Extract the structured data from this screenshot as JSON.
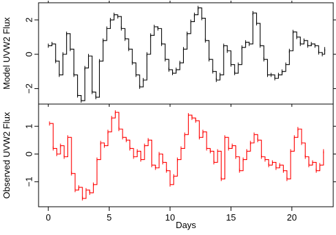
{
  "chart_data": [
    {
      "type": "line",
      "panel": "top",
      "xlabel": "",
      "ylabel": "Model UVW2 Flux",
      "xlim": [
        -0.8,
        23.4
      ],
      "ylim": [
        -2.9,
        3.0
      ],
      "xticks": [
        0,
        5,
        10,
        15,
        20
      ],
      "yticks": [
        -2,
        0,
        2
      ],
      "ytick_labels": [
        "−2",
        "0",
        "2"
      ],
      "color": "#000000",
      "series": [
        {
          "x": [
            0.0,
            0.3,
            0.6,
            0.9,
            1.2,
            1.5,
            1.8,
            2.1,
            2.4,
            2.7,
            3.0,
            3.3,
            3.6,
            3.9,
            4.2,
            4.5,
            4.8,
            5.1,
            5.4,
            5.7,
            6.0,
            6.3,
            6.6,
            6.9,
            7.2,
            7.5,
            7.8,
            8.1,
            8.4,
            8.7,
            9.0,
            9.3,
            9.6,
            9.9,
            10.2,
            10.5,
            10.8,
            11.1,
            11.4,
            11.7,
            12.0,
            12.3,
            12.6,
            12.9,
            13.2,
            13.5,
            13.8,
            14.1,
            14.4,
            14.7,
            15.0,
            15.3,
            15.6,
            15.9,
            16.2,
            16.5,
            16.8,
            17.1,
            17.4,
            17.7,
            18.0,
            18.3,
            18.6,
            18.9,
            19.2,
            19.5,
            19.8,
            20.1,
            20.4,
            20.7,
            21.0,
            21.3,
            21.6,
            21.9,
            22.2,
            22.5,
            22.7
          ],
          "y": [
            0.5,
            0.6,
            -0.4,
            -1.2,
            0.0,
            1.2,
            0.3,
            -1.2,
            -2.4,
            -2.7,
            -0.8,
            -0.1,
            -2.2,
            -2.5,
            -0.4,
            0.8,
            1.5,
            2.0,
            2.3,
            2.2,
            1.5,
            0.9,
            0.3,
            -0.5,
            -1.2,
            -1.9,
            -1.5,
            0.0,
            1.1,
            1.6,
            1.5,
            0.6,
            -0.3,
            -0.9,
            -1.1,
            -0.9,
            -0.5,
            0.3,
            1.2,
            1.9,
            2.3,
            2.7,
            2.1,
            0.8,
            -0.3,
            -1.0,
            -1.5,
            -1.2,
            0.5,
            0.2,
            -0.6,
            -1.1,
            -0.6,
            0.4,
            0.7,
            0.6,
            2.4,
            1.8,
            0.5,
            -0.3,
            -1.2,
            -1.2,
            -1.4,
            -1.2,
            -1.0,
            -0.6,
            0.2,
            1.3,
            1.0,
            0.6,
            0.8,
            0.5,
            0.6,
            0.5,
            0.1,
            0.0,
            0.3
          ]
        }
      ]
    },
    {
      "type": "line",
      "panel": "bottom",
      "xlabel": "Days",
      "ylabel": "Observed UVW2 Flux",
      "xlim": [
        -0.8,
        23.4
      ],
      "ylim": [
        -1.9,
        1.8
      ],
      "xticks": [
        0,
        5,
        10,
        15,
        20
      ],
      "xtick_labels": [
        "0",
        "5",
        "10",
        "15",
        "20"
      ],
      "yticks": [
        -1,
        0,
        1
      ],
      "ytick_labels": [
        "−1",
        "0",
        "1"
      ],
      "color": "#ff0000",
      "series": [
        {
          "x": [
            0.1,
            0.4,
            0.7,
            1.0,
            1.3,
            1.6,
            1.9,
            2.2,
            2.5,
            2.8,
            3.1,
            3.4,
            3.7,
            4.0,
            4.3,
            4.6,
            4.9,
            5.2,
            5.5,
            5.8,
            6.1,
            6.4,
            6.7,
            7.0,
            7.3,
            7.6,
            7.9,
            8.2,
            8.5,
            8.8,
            9.1,
            9.4,
            9.7,
            10.0,
            10.3,
            10.6,
            10.9,
            11.2,
            11.5,
            11.8,
            12.1,
            12.4,
            12.7,
            13.0,
            13.3,
            13.6,
            13.9,
            14.2,
            14.5,
            14.8,
            15.1,
            15.4,
            15.7,
            16.0,
            16.3,
            16.6,
            16.9,
            17.2,
            17.5,
            17.8,
            18.1,
            18.4,
            18.7,
            19.0,
            19.3,
            19.6,
            19.9,
            20.2,
            20.5,
            20.8,
            21.1,
            21.4,
            21.7,
            22.0,
            22.3,
            22.6
          ],
          "y": [
            1.1,
            0.2,
            0.0,
            0.3,
            -0.1,
            0.6,
            -0.7,
            -1.3,
            -1.2,
            -1.6,
            -1.3,
            -1.4,
            -1.1,
            -0.2,
            0.4,
            0.3,
            0.8,
            1.3,
            1.5,
            0.9,
            0.6,
            0.5,
            0.2,
            -0.1,
            0.1,
            -0.2,
            0.3,
            0.5,
            -0.4,
            -0.5,
            0.0,
            -0.3,
            -0.6,
            -1.1,
            -0.8,
            -0.2,
            0.2,
            0.7,
            1.4,
            1.3,
            1.2,
            0.6,
            0.8,
            0.2,
            0.1,
            -0.3,
            0.1,
            -0.9,
            0.6,
            0.2,
            0.3,
            -0.1,
            -0.6,
            -0.2,
            0.1,
            0.4,
            0.7,
            0.5,
            -0.1,
            -0.2,
            -0.4,
            -0.3,
            -0.5,
            -0.4,
            -0.6,
            -0.9,
            0.1,
            0.6,
            0.9,
            0.4,
            -0.1,
            -0.4,
            -0.3,
            -0.6,
            -0.4,
            0.1
          ]
        }
      ]
    }
  ]
}
